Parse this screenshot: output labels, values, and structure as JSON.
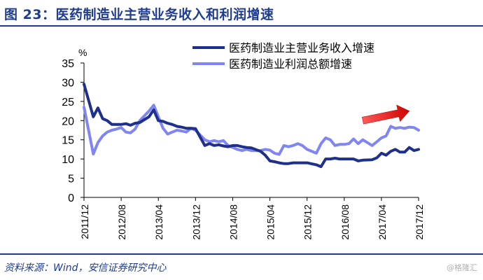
{
  "figure": {
    "title": "图 23：医药制造业主营业务收入和利润增速",
    "source": "资料来源：Wind，安信证券研究中心",
    "watermark": "@格隆汇"
  },
  "colors": {
    "title": "#1f3c8f",
    "series_revenue": "#1f2f8c",
    "series_profit": "#7f86f2",
    "arrow": "#e01010",
    "axis": "#000000"
  },
  "chart_data": {
    "type": "line",
    "ylabel": "%",
    "ylim": [
      0,
      35
    ],
    "yticks": [
      0,
      5,
      10,
      15,
      20,
      25,
      30,
      35
    ],
    "grid": false,
    "legend_position": "top-right",
    "x_start": "2011/12",
    "x_end": "2017/12",
    "xticks": [
      "2011/12",
      "2012/08",
      "2013/04",
      "2013/12",
      "2014/08",
      "2015/04",
      "2015/12",
      "2016/08",
      "2017/04",
      "2017/12"
    ],
    "series": [
      {
        "name": "医药制造业主营业务收入增速",
        "values": [
          [
            "2011/12",
            29.5
          ],
          [
            "2012/02",
            21.0
          ],
          [
            "2012/03",
            23.3
          ],
          [
            "2012/04",
            20.5
          ],
          [
            "2012/05",
            20.0
          ],
          [
            "2012/06",
            19.0
          ],
          [
            "2012/07",
            19.0
          ],
          [
            "2012/08",
            19.0
          ],
          [
            "2012/09",
            19.2
          ],
          [
            "2012/10",
            18.8
          ],
          [
            "2012/11",
            19.3
          ],
          [
            "2012/12",
            19.5
          ],
          [
            "2013/02",
            21.0
          ],
          [
            "2013/03",
            22.8
          ],
          [
            "2013/04",
            20.0
          ],
          [
            "2013/05",
            19.8
          ],
          [
            "2013/06",
            19.3
          ],
          [
            "2013/07",
            19.0
          ],
          [
            "2013/08",
            18.5
          ],
          [
            "2013/09",
            18.3
          ],
          [
            "2013/10",
            18.0
          ],
          [
            "2013/11",
            18.0
          ],
          [
            "2013/12",
            17.9
          ],
          [
            "2014/02",
            13.5
          ],
          [
            "2014/03",
            14.0
          ],
          [
            "2014/04",
            13.5
          ],
          [
            "2014/05",
            13.7
          ],
          [
            "2014/06",
            13.4
          ],
          [
            "2014/07",
            13.2
          ],
          [
            "2014/08",
            13.5
          ],
          [
            "2014/09",
            13.5
          ],
          [
            "2014/10",
            13.2
          ],
          [
            "2014/11",
            13.0
          ],
          [
            "2014/12",
            12.9
          ],
          [
            "2015/02",
            12.0
          ],
          [
            "2015/03",
            11.0
          ],
          [
            "2015/04",
            9.5
          ],
          [
            "2015/05",
            9.3
          ],
          [
            "2015/06",
            9.0
          ],
          [
            "2015/07",
            8.8
          ],
          [
            "2015/08",
            8.8
          ],
          [
            "2015/09",
            9.0
          ],
          [
            "2015/10",
            9.0
          ],
          [
            "2015/11",
            9.0
          ],
          [
            "2015/12",
            9.0
          ],
          [
            "2016/02",
            8.5
          ],
          [
            "2016/03",
            8.0
          ],
          [
            "2016/04",
            10.0
          ],
          [
            "2016/05",
            10.0
          ],
          [
            "2016/06",
            10.2
          ],
          [
            "2016/07",
            10.0
          ],
          [
            "2016/08",
            10.0
          ],
          [
            "2016/09",
            10.0
          ],
          [
            "2016/10",
            10.0
          ],
          [
            "2016/11",
            9.5
          ],
          [
            "2016/12",
            9.7
          ],
          [
            "2017/02",
            9.8
          ],
          [
            "2017/03",
            10.3
          ],
          [
            "2017/04",
            11.5
          ],
          [
            "2017/05",
            11.0
          ],
          [
            "2017/06",
            12.0
          ],
          [
            "2017/07",
            12.5
          ],
          [
            "2017/08",
            11.8
          ],
          [
            "2017/09",
            11.8
          ],
          [
            "2017/10",
            13.0
          ],
          [
            "2017/11",
            12.2
          ],
          [
            "2017/12",
            12.5
          ]
        ]
      },
      {
        "name": "医药制造业利润总额增速",
        "values": [
          [
            "2011/12",
            23.5
          ],
          [
            "2012/02",
            11.3
          ],
          [
            "2012/03",
            14.3
          ],
          [
            "2012/04",
            16.0
          ],
          [
            "2012/05",
            17.0
          ],
          [
            "2012/06",
            17.5
          ],
          [
            "2012/07",
            17.8
          ],
          [
            "2012/08",
            18.2
          ],
          [
            "2012/09",
            17.0
          ],
          [
            "2012/10",
            16.8
          ],
          [
            "2012/11",
            17.8
          ],
          [
            "2012/12",
            20.0
          ],
          [
            "2013/02",
            22.5
          ],
          [
            "2013/03",
            24.0
          ],
          [
            "2013/04",
            21.0
          ],
          [
            "2013/05",
            18.0
          ],
          [
            "2013/06",
            16.5
          ],
          [
            "2013/07",
            17.0
          ],
          [
            "2013/08",
            17.5
          ],
          [
            "2013/09",
            17.3
          ],
          [
            "2013/10",
            17.0
          ],
          [
            "2013/11",
            18.0
          ],
          [
            "2013/12",
            17.5
          ],
          [
            "2014/02",
            15.0
          ],
          [
            "2014/03",
            14.5
          ],
          [
            "2014/04",
            14.8
          ],
          [
            "2014/05",
            14.5
          ],
          [
            "2014/06",
            14.8
          ],
          [
            "2014/07",
            13.5
          ],
          [
            "2014/08",
            13.0
          ],
          [
            "2014/09",
            12.5
          ],
          [
            "2014/10",
            12.2
          ],
          [
            "2014/11",
            12.5
          ],
          [
            "2014/12",
            12.2
          ],
          [
            "2015/02",
            12.2
          ],
          [
            "2015/03",
            12.5
          ],
          [
            "2015/04",
            12.3
          ],
          [
            "2015/05",
            11.5
          ],
          [
            "2015/06",
            11.2
          ],
          [
            "2015/07",
            13.5
          ],
          [
            "2015/08",
            13.2
          ],
          [
            "2015/09",
            13.5
          ],
          [
            "2015/10",
            14.0
          ],
          [
            "2015/11",
            13.5
          ],
          [
            "2015/12",
            12.5
          ],
          [
            "2016/02",
            11.5
          ],
          [
            "2016/03",
            14.0
          ],
          [
            "2016/04",
            15.5
          ],
          [
            "2016/05",
            15.0
          ],
          [
            "2016/06",
            13.5
          ],
          [
            "2016/07",
            13.8
          ],
          [
            "2016/08",
            13.8
          ],
          [
            "2016/09",
            14.0
          ],
          [
            "2016/10",
            15.2
          ],
          [
            "2016/11",
            14.0
          ],
          [
            "2016/12",
            15.0
          ],
          [
            "2017/02",
            13.5
          ],
          [
            "2017/03",
            14.5
          ],
          [
            "2017/04",
            15.5
          ],
          [
            "2017/05",
            16.0
          ],
          [
            "2017/06",
            18.5
          ],
          [
            "2017/07",
            18.0
          ],
          [
            "2017/08",
            18.2
          ],
          [
            "2017/09",
            18.0
          ],
          [
            "2017/10",
            18.3
          ],
          [
            "2017/11",
            18.2
          ],
          [
            "2017/12",
            17.5
          ]
        ]
      }
    ],
    "annotation": {
      "type": "arrow",
      "from": [
        "2016/12",
        20.0
      ],
      "to": [
        "2017/10",
        22.5
      ]
    }
  }
}
